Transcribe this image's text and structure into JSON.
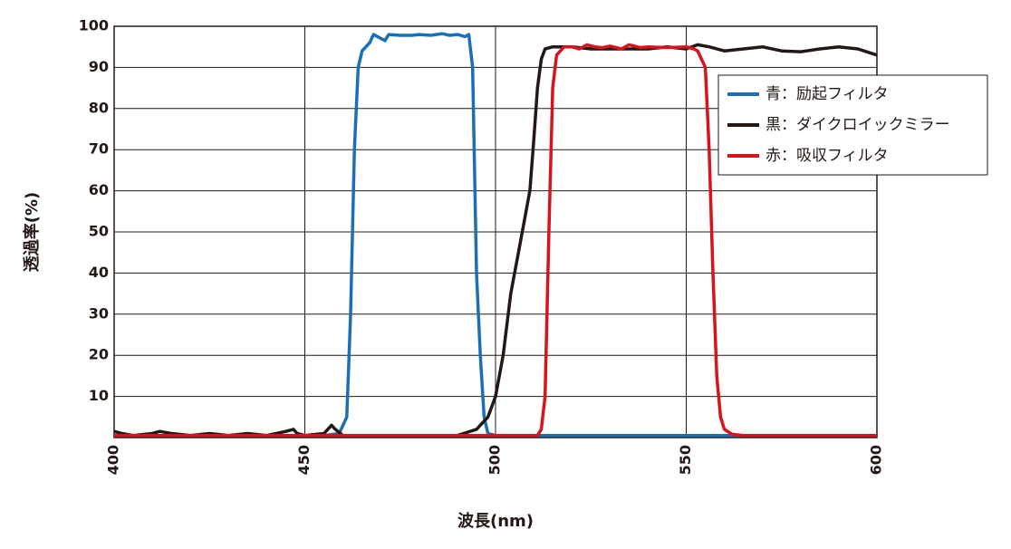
{
  "chart_data": {
    "type": "line",
    "xlabel": "波長(nm)",
    "ylabel": "透過率(%)",
    "xlim": [
      400,
      600
    ],
    "ylim": [
      0,
      100
    ],
    "xticks": [
      400,
      450,
      500,
      550,
      600
    ],
    "yticks": [
      10,
      20,
      30,
      40,
      50,
      60,
      70,
      80,
      90,
      100
    ],
    "grid": true,
    "legend": "upper right",
    "series": [
      {
        "name": "青：励起フィルタ",
        "color": "#1a6fb5",
        "x": [
          400,
          455,
          459,
          461,
          462,
          463,
          464,
          465,
          467,
          468,
          470,
          471,
          472,
          475,
          478,
          480,
          483,
          486,
          488,
          490,
          492,
          493,
          494,
          495,
          496,
          497,
          498,
          500,
          600
        ],
        "values": [
          0.5,
          0.5,
          1,
          5,
          30,
          70,
          90,
          94,
          96,
          98,
          97,
          96.5,
          98,
          97.8,
          97.8,
          98,
          97.8,
          98.2,
          97.8,
          98,
          97.5,
          98,
          90,
          40,
          20,
          5,
          1,
          0.5,
          0.5
        ]
      },
      {
        "name": "黒：ダイクロイックミラー",
        "color": "#231815",
        "x": [
          400,
          402,
          405,
          410,
          412,
          415,
          420,
          425,
          430,
          435,
          440,
          445,
          447,
          448,
          450,
          455,
          457,
          458,
          460,
          480,
          490,
          495,
          498,
          500,
          502,
          504,
          506,
          507,
          509,
          510,
          511,
          512,
          513,
          515,
          520,
          525,
          530,
          540,
          545,
          550,
          553,
          556,
          560,
          565,
          570,
          575,
          580,
          585,
          590,
          595,
          600
        ],
        "values": [
          1.5,
          1,
          0.5,
          1,
          1.5,
          1,
          0.5,
          1,
          0.5,
          1,
          0.5,
          1.5,
          2,
          1,
          0.5,
          1,
          3,
          2,
          0.5,
          0.5,
          0.5,
          2,
          5,
          10,
          20,
          35,
          45,
          50,
          60,
          72,
          85,
          92,
          94.5,
          95,
          95,
          94.5,
          94.5,
          94.5,
          95,
          94.5,
          95.5,
          95,
          94,
          94.5,
          95,
          94,
          93.8,
          94.5,
          95,
          94.5,
          93
        ]
      },
      {
        "name": "赤：吸収フィルタ",
        "color": "#d7141e",
        "x": [
          400,
          511,
          512,
          513,
          514,
          515,
          516,
          518,
          520,
          522,
          524,
          526,
          528,
          530,
          533,
          535,
          538,
          540,
          545,
          550,
          552,
          553,
          555,
          556,
          557,
          558,
          559,
          560,
          562,
          565,
          600
        ],
        "values": [
          0.5,
          0.5,
          2,
          10,
          50,
          85,
          93,
          95,
          95,
          94.5,
          95.5,
          95,
          94.8,
          95.2,
          94.5,
          95.5,
          94.8,
          95,
          94.8,
          95,
          94.5,
          94,
          90,
          70,
          40,
          15,
          5,
          2,
          0.8,
          0.5,
          0.5
        ]
      }
    ]
  }
}
